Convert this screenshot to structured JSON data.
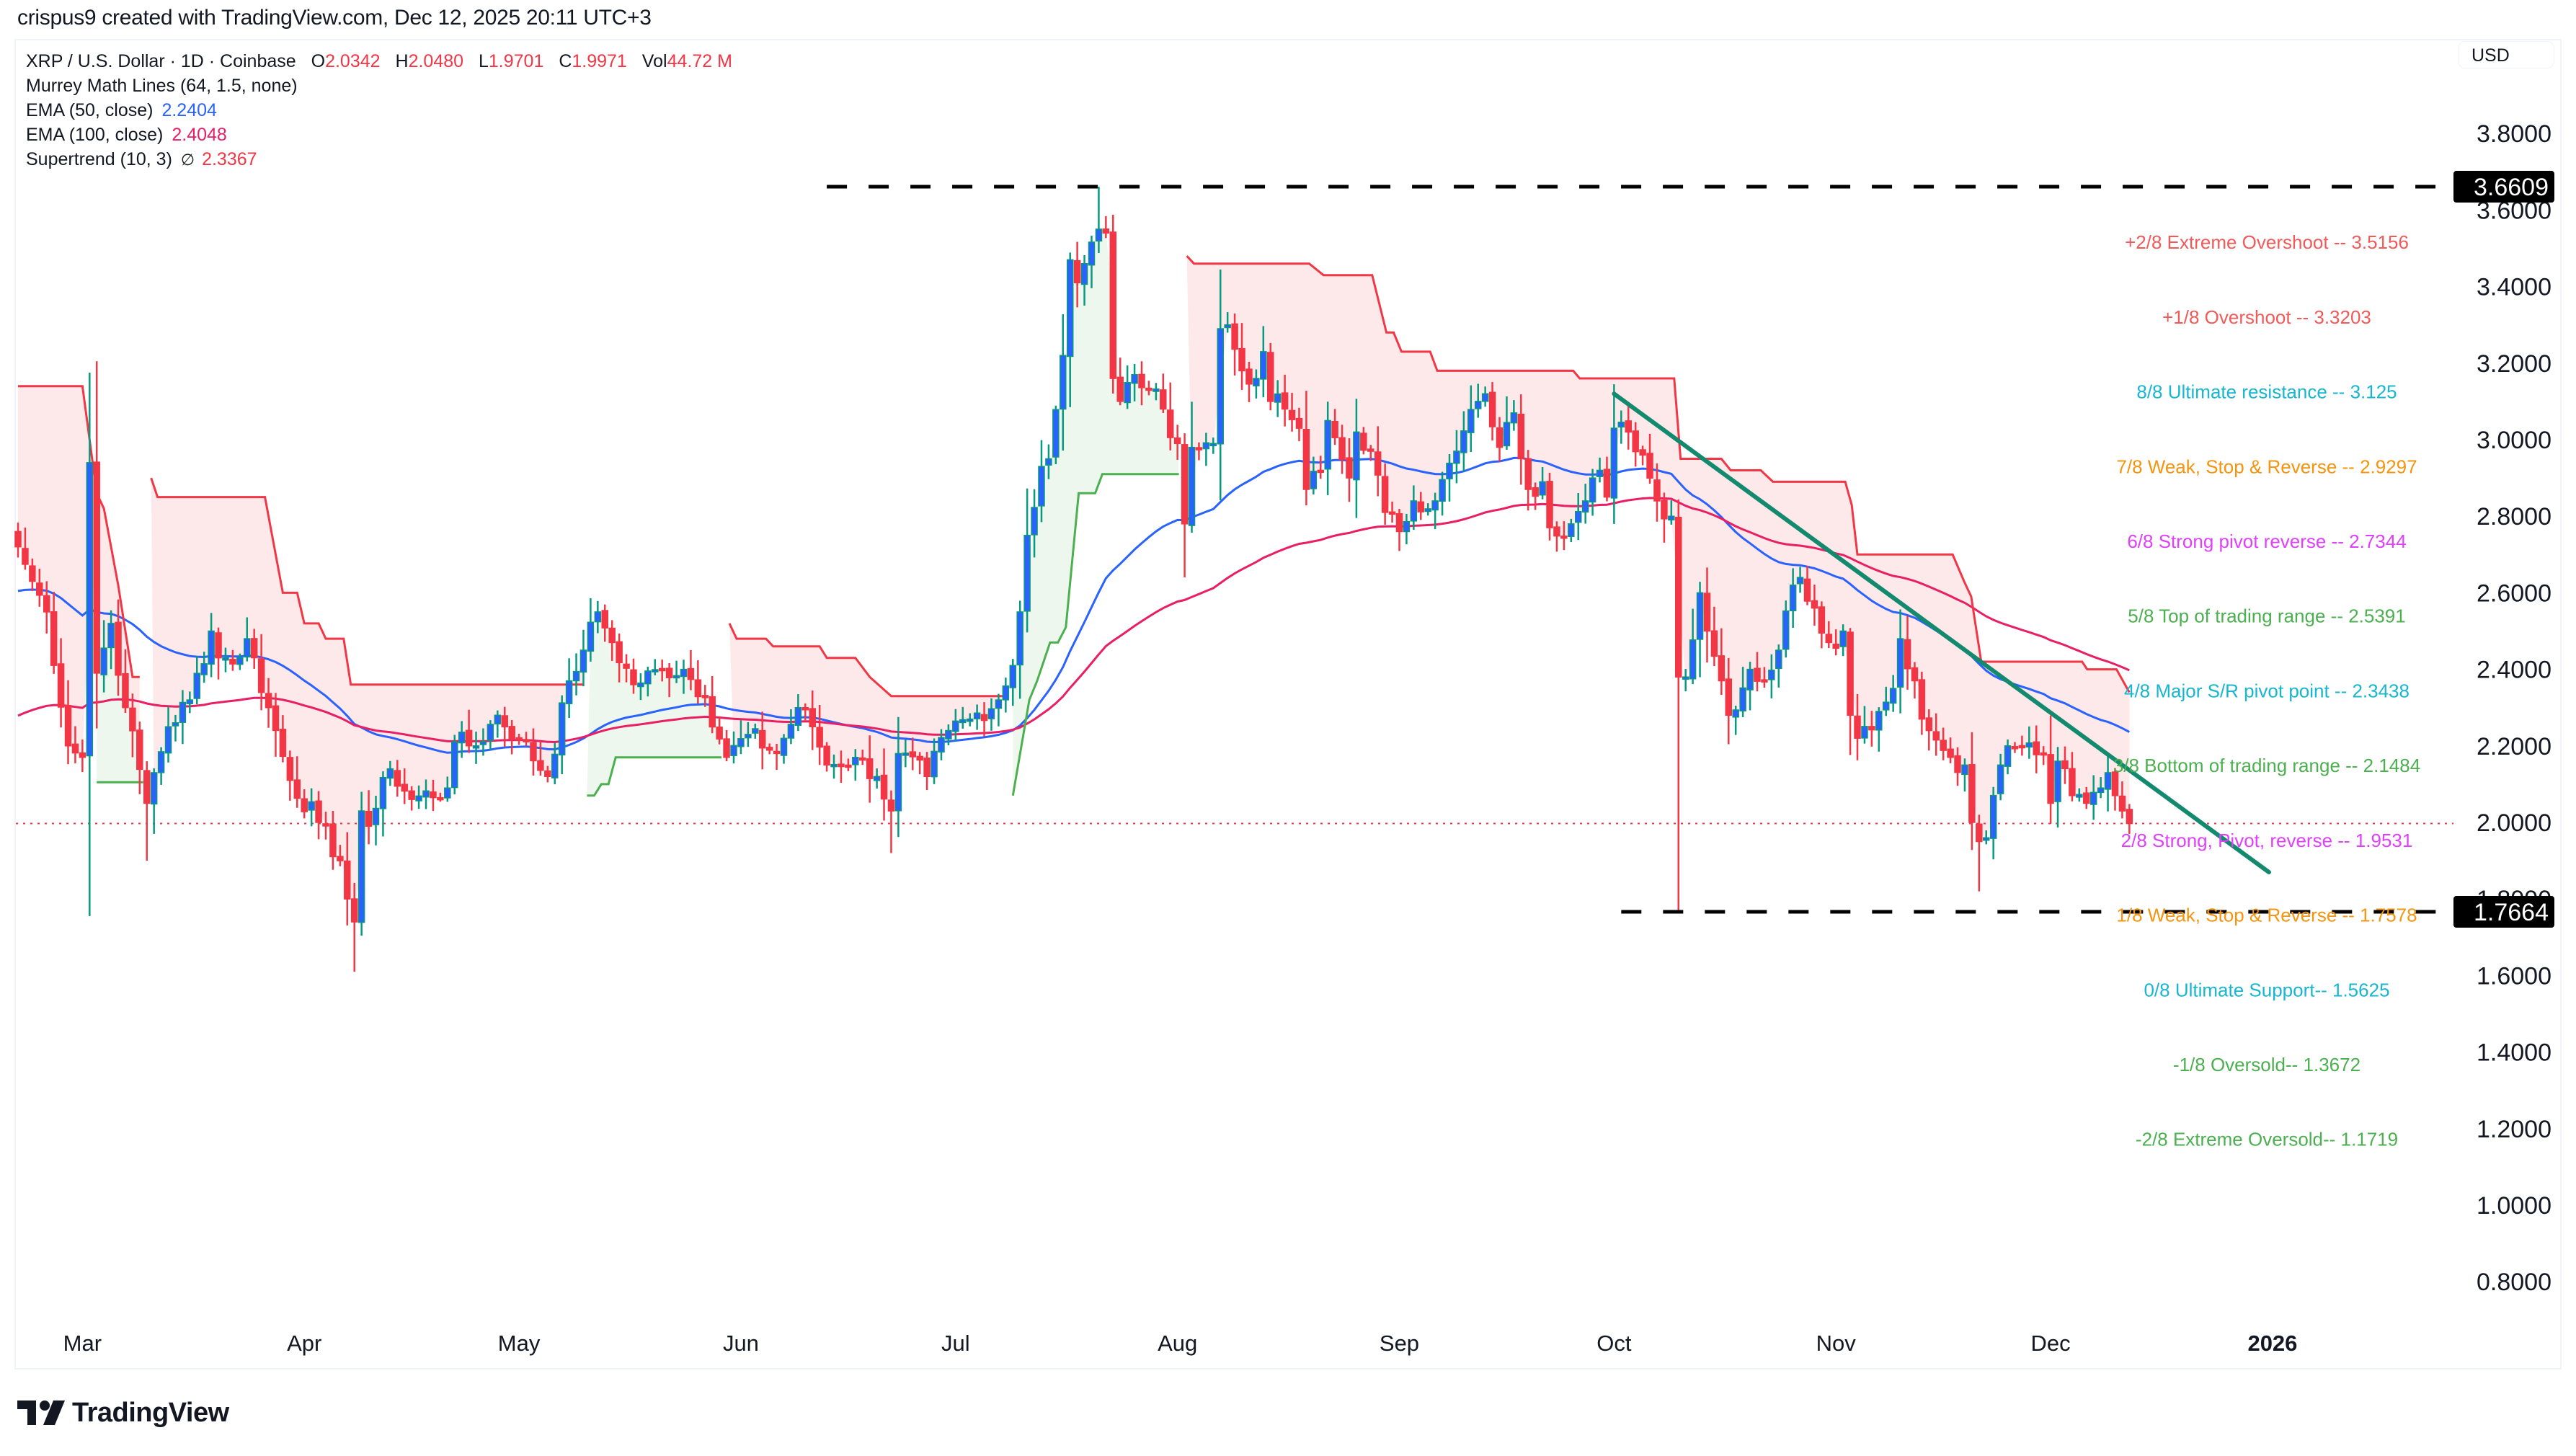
{
  "attribution": "crispus9 created with TradingView.com, Dec 12, 2025 20:11 UTC+3",
  "legend": {
    "symbol": "XRP / U.S. Dollar · 1D · Coinbase",
    "open_k": "O",
    "open_v": "2.0342",
    "high_k": "H",
    "high_v": "2.0480",
    "low_k": "L",
    "low_v": "1.9701",
    "close_k": "C",
    "close_v": "1.9971",
    "vol_k": "Vol",
    "vol_v": "44.72 M",
    "murrey": "Murrey Math Lines (64, 1.5, none)",
    "ema50_label": "EMA (50, close)",
    "ema50_value": "2.2404",
    "ema100_label": "EMA (100, close)",
    "ema100_value": "2.4048",
    "supertrend_label": "Supertrend (10, 3)",
    "supertrend_icon": "∅",
    "supertrend_value": "2.3367"
  },
  "currency_button": "USD",
  "logo": {
    "icon": "tradingview-logo-icon",
    "text": "TradingView"
  },
  "colors": {
    "up_body": "#2962ff",
    "up_wick": "#089981",
    "down": "#f23645",
    "ema50": "#2962ff",
    "ema100": "#e91e63",
    "st_red": "#f23645",
    "st_red_fill": "#fde9ea",
    "st_green": "#4caf50",
    "st_green_fill": "#edf7ee",
    "trendline": "#138a6e",
    "level_line": "#000000"
  },
  "chart_data": {
    "type": "candlestick",
    "title": "XRP / U.S. Dollar · 1D · Coinbase",
    "xlabel": "",
    "ylabel": "USD",
    "ylim": [
      0.72,
      3.88
    ],
    "grid": false,
    "y_ticks": [
      "3.8000",
      "3.6000",
      "3.4000",
      "3.2000",
      "3.0000",
      "2.8000",
      "2.6000",
      "2.4000",
      "2.2000",
      "2.0000",
      "1.8000",
      "1.6000",
      "1.4000",
      "1.2000",
      "1.0000",
      "0.8000"
    ],
    "x_ticks": [
      {
        "label": "Mar",
        "day": 9
      },
      {
        "label": "Apr",
        "day": 40
      },
      {
        "label": "May",
        "day": 70
      },
      {
        "label": "Jun",
        "day": 101
      },
      {
        "label": "Jul",
        "day": 131
      },
      {
        "label": "Aug",
        "day": 162
      },
      {
        "label": "Sep",
        "day": 193
      },
      {
        "label": "Oct",
        "day": 223
      },
      {
        "label": "Nov",
        "day": 254
      },
      {
        "label": "Dec",
        "day": 284
      },
      {
        "label": "2026",
        "day": 315,
        "bold": true
      }
    ],
    "day0": "2025-02-20",
    "last_candle": {
      "day": 295,
      "open": 2.0342,
      "high": 2.048,
      "low": 1.9701,
      "close": 1.9971
    },
    "last_price": 1.9971,
    "close_anchors": [
      [
        0,
        2.72
      ],
      [
        2,
        2.63
      ],
      [
        4,
        2.55
      ],
      [
        7,
        2.2
      ],
      [
        9,
        2.17
      ],
      [
        10,
        2.94
      ],
      [
        11,
        2.39
      ],
      [
        13,
        2.52
      ],
      [
        15,
        2.3
      ],
      [
        18,
        2.05
      ],
      [
        19,
        2.13
      ],
      [
        21,
        2.25
      ],
      [
        24,
        2.32
      ],
      [
        27,
        2.5
      ],
      [
        28,
        2.43
      ],
      [
        31,
        2.43
      ],
      [
        32,
        2.48
      ],
      [
        35,
        2.3
      ],
      [
        38,
        2.11
      ],
      [
        42,
        2.0
      ],
      [
        45,
        1.9
      ],
      [
        46,
        1.8
      ],
      [
        47,
        1.74
      ],
      [
        48,
        2.03
      ],
      [
        49,
        1.99
      ],
      [
        52,
        2.14
      ],
      [
        55,
        2.06
      ],
      [
        60,
        2.09
      ],
      [
        61,
        2.21
      ],
      [
        64,
        2.2
      ],
      [
        67,
        2.28
      ],
      [
        70,
        2.22
      ],
      [
        74,
        2.12
      ],
      [
        77,
        2.37
      ],
      [
        79,
        2.45
      ],
      [
        81,
        2.55
      ],
      [
        83,
        2.47
      ],
      [
        86,
        2.36
      ],
      [
        90,
        2.4
      ],
      [
        93,
        2.4
      ],
      [
        96,
        2.33
      ],
      [
        99,
        2.17
      ],
      [
        102,
        2.23
      ],
      [
        106,
        2.18
      ],
      [
        109,
        2.3
      ],
      [
        111,
        2.25
      ],
      [
        113,
        2.15
      ],
      [
        117,
        2.17
      ],
      [
        120,
        2.12
      ],
      [
        122,
        2.03
      ],
      [
        123,
        2.18
      ],
      [
        127,
        2.12
      ],
      [
        130,
        2.24
      ],
      [
        133,
        2.27
      ],
      [
        137,
        2.32
      ],
      [
        139,
        2.41
      ],
      [
        140,
        2.55
      ],
      [
        141,
        2.75
      ],
      [
        143,
        2.93
      ],
      [
        144,
        2.95
      ],
      [
        146,
        3.22
      ],
      [
        147,
        3.47
      ],
      [
        148,
        3.41
      ],
      [
        149,
        3.46
      ],
      [
        151,
        3.55
      ],
      [
        152,
        3.54
      ],
      [
        153,
        3.16
      ],
      [
        154,
        3.1
      ],
      [
        156,
        3.17
      ],
      [
        158,
        3.13
      ],
      [
        160,
        3.08
      ],
      [
        162,
        2.99
      ],
      [
        163,
        2.78
      ],
      [
        164,
        2.98
      ],
      [
        167,
        2.99
      ],
      [
        168,
        3.29
      ],
      [
        169,
        3.3
      ],
      [
        171,
        3.18
      ],
      [
        173,
        3.16
      ],
      [
        174,
        3.23
      ],
      [
        175,
        3.1
      ],
      [
        177,
        3.08
      ],
      [
        179,
        3.03
      ],
      [
        180,
        2.87
      ],
      [
        182,
        2.92
      ],
      [
        183,
        3.05
      ],
      [
        186,
        2.9
      ],
      [
        187,
        3.02
      ],
      [
        189,
        2.97
      ],
      [
        191,
        2.81
      ],
      [
        193,
        2.76
      ],
      [
        195,
        2.84
      ],
      [
        198,
        2.84
      ],
      [
        201,
        2.97
      ],
      [
        204,
        3.1
      ],
      [
        205,
        3.12
      ],
      [
        207,
        2.98
      ],
      [
        209,
        3.07
      ],
      [
        211,
        2.87
      ],
      [
        213,
        2.89
      ],
      [
        214,
        2.77
      ],
      [
        217,
        2.78
      ],
      [
        219,
        2.84
      ],
      [
        221,
        2.92
      ],
      [
        222,
        2.85
      ],
      [
        223,
        3.03
      ],
      [
        225,
        3.02
      ],
      [
        227,
        2.96
      ],
      [
        229,
        2.84
      ],
      [
        231,
        2.8
      ],
      [
        232,
        2.38
      ],
      [
        233,
        2.38
      ],
      [
        235,
        2.6
      ],
      [
        236,
        2.5
      ],
      [
        238,
        2.37
      ],
      [
        239,
        2.28
      ],
      [
        242,
        2.4
      ],
      [
        244,
        2.37
      ],
      [
        246,
        2.45
      ],
      [
        248,
        2.62
      ],
      [
        249,
        2.64
      ],
      [
        251,
        2.56
      ],
      [
        253,
        2.47
      ],
      [
        255,
        2.5
      ],
      [
        256,
        2.28
      ],
      [
        257,
        2.22
      ],
      [
        260,
        2.29
      ],
      [
        262,
        2.35
      ],
      [
        263,
        2.48
      ],
      [
        265,
        2.37
      ],
      [
        266,
        2.27
      ],
      [
        267,
        2.24
      ],
      [
        270,
        2.17
      ],
      [
        272,
        2.15
      ],
      [
        273,
        2.0
      ],
      [
        274,
        1.95
      ],
      [
        275,
        1.96
      ],
      [
        277,
        2.15
      ],
      [
        278,
        2.2
      ],
      [
        280,
        2.2
      ],
      [
        283,
        2.18
      ],
      [
        284,
        2.05
      ],
      [
        285,
        2.16
      ],
      [
        287,
        2.07
      ],
      [
        289,
        2.05
      ],
      [
        291,
        2.09
      ],
      [
        292,
        2.13
      ],
      [
        293,
        2.07
      ],
      [
        294,
        2.03
      ],
      [
        295,
        1.9971
      ]
    ],
    "wick_extremes": [
      {
        "day": 10,
        "high": 3.0
      },
      {
        "day": 18,
        "low": 1.9
      },
      {
        "day": 47,
        "low": 1.61
      },
      {
        "day": 48,
        "high": 2.08
      },
      {
        "day": 151,
        "high": 3.6609
      },
      {
        "day": 232,
        "low": 1.7664
      },
      {
        "day": 274,
        "low": 1.82
      },
      {
        "day": 122,
        "low": 1.92
      }
    ],
    "ema_seed": {
      "ema50": 2.6,
      "ema100": 2.27
    },
    "ema_last": {
      "ema50": 2.2404,
      "ema100": 2.4048
    },
    "supertrend_segments": [
      {
        "trend": "down",
        "points": [
          [
            0,
            3.14
          ],
          [
            9,
            3.14
          ],
          [
            11,
            2.86
          ],
          [
            12,
            2.82
          ],
          [
            14,
            2.62
          ],
          [
            16,
            2.38
          ],
          [
            17,
            2.38
          ]
        ]
      },
      {
        "trend": "up",
        "points": [
          [
            11,
            2.105
          ],
          [
            17.5,
            2.105
          ]
        ]
      },
      {
        "trend": "down",
        "points": [
          [
            18.6,
            2.9
          ],
          [
            19.5,
            2.85
          ],
          [
            34.5,
            2.85
          ],
          [
            37,
            2.6
          ],
          [
            39,
            2.6
          ],
          [
            40,
            2.52
          ],
          [
            42,
            2.52
          ],
          [
            43,
            2.48
          ],
          [
            45.5,
            2.48
          ],
          [
            46.5,
            2.36
          ],
          [
            79,
            2.36
          ]
        ]
      },
      {
        "trend": "up",
        "points": [
          [
            79.5,
            2.07
          ],
          [
            80.5,
            2.07
          ],
          [
            81.5,
            2.1
          ],
          [
            82.5,
            2.1
          ],
          [
            83.5,
            2.17
          ],
          [
            98.3,
            2.17
          ]
        ]
      },
      {
        "trend": "down",
        "points": [
          [
            99.4,
            2.52
          ],
          [
            100.4,
            2.48
          ],
          [
            104.5,
            2.48
          ],
          [
            105.5,
            2.46
          ],
          [
            112,
            2.46
          ],
          [
            113,
            2.43
          ],
          [
            117,
            2.43
          ],
          [
            119,
            2.38
          ],
          [
            122,
            2.33
          ],
          [
            138,
            2.33
          ]
        ]
      },
      {
        "trend": "up",
        "points": [
          [
            139,
            2.07
          ],
          [
            141.3,
            2.32
          ],
          [
            142.4,
            2.37
          ],
          [
            144.2,
            2.47
          ],
          [
            145.3,
            2.47
          ],
          [
            146.4,
            2.51
          ],
          [
            148.2,
            2.86
          ],
          [
            150.5,
            2.86
          ],
          [
            151.5,
            2.91
          ],
          [
            162.2,
            2.91
          ]
        ]
      },
      {
        "trend": "down",
        "points": [
          [
            163.3,
            3.48
          ],
          [
            164.3,
            3.46
          ],
          [
            180.4,
            3.46
          ],
          [
            182.4,
            3.43
          ],
          [
            189.2,
            3.43
          ],
          [
            191.2,
            3.28
          ],
          [
            192.2,
            3.28
          ],
          [
            193.3,
            3.23
          ],
          [
            197.3,
            3.23
          ],
          [
            198.3,
            3.18
          ],
          [
            217.3,
            3.18
          ],
          [
            218.2,
            3.16
          ],
          [
            231.4,
            3.16
          ],
          [
            232.3,
            2.95
          ],
          [
            238,
            2.95
          ],
          [
            239.3,
            2.92
          ],
          [
            243.5,
            2.92
          ],
          [
            245.2,
            2.89
          ],
          [
            255.3,
            2.89
          ],
          [
            256.2,
            2.83
          ],
          [
            257,
            2.7
          ],
          [
            270.3,
            2.7
          ],
          [
            271.9,
            2.63
          ],
          [
            272.9,
            2.59
          ],
          [
            274.3,
            2.42
          ],
          [
            288.4,
            2.42
          ],
          [
            289.1,
            2.4
          ],
          [
            293.2,
            2.4
          ],
          [
            295,
            2.34
          ]
        ]
      }
    ],
    "trendline": {
      "from": [
        223,
        3.12
      ],
      "to": [
        314.5,
        1.87
      ]
    },
    "horizontal_levels": [
      {
        "name": "resistance-high",
        "price": 3.6609,
        "from_day": 113,
        "label": "3.6609"
      },
      {
        "name": "support-low",
        "price": 1.7664,
        "from_day": 224,
        "label": "1.7664"
      }
    ],
    "murrey_levels": [
      {
        "label": "+2/8 Extreme Overshoot --  3.5156",
        "price": 3.5156,
        "color": "#f25a5a"
      },
      {
        "label": "+1/8 Overshoot --  3.3203",
        "price": 3.3203,
        "color": "#f25a5a"
      },
      {
        "label": "8/8 Ultimate resistance --  3.125",
        "price": 3.125,
        "color": "#17b6d1"
      },
      {
        "label": "7/8 Weak, Stop & Reverse --  2.9297",
        "price": 2.9297,
        "color": "#f5940f"
      },
      {
        "label": "6/8 Strong pivot reverse --  2.7344",
        "price": 2.7344,
        "color": "#e040fb"
      },
      {
        "label": "5/8 Top of trading range --  2.5391",
        "price": 2.5391,
        "color": "#4caf50"
      },
      {
        "label": "4/8 Major S/R pivot point --  2.3438",
        "price": 2.3438,
        "color": "#17b6d1"
      },
      {
        "label": "3/8 Bottom of trading range --  2.1484",
        "price": 2.1484,
        "color": "#4caf50"
      },
      {
        "label": "2/8 Strong, Pivot, reverse --  1.9531",
        "price": 1.9531,
        "color": "#e040fb"
      },
      {
        "label": "1/8 Weak, Stop & Reverse --  1.7578",
        "price": 1.7578,
        "color": "#f5940f"
      },
      {
        "label": "0/8 Ultimate Support--  1.5625",
        "price": 1.5625,
        "color": "#17b6d1"
      },
      {
        "label": "-1/8 Oversold--  1.3672",
        "price": 1.3672,
        "color": "#4caf50"
      },
      {
        "label": "-2/8 Extreme Oversold--  1.1719",
        "price": 1.1719,
        "color": "#4caf50"
      }
    ]
  }
}
